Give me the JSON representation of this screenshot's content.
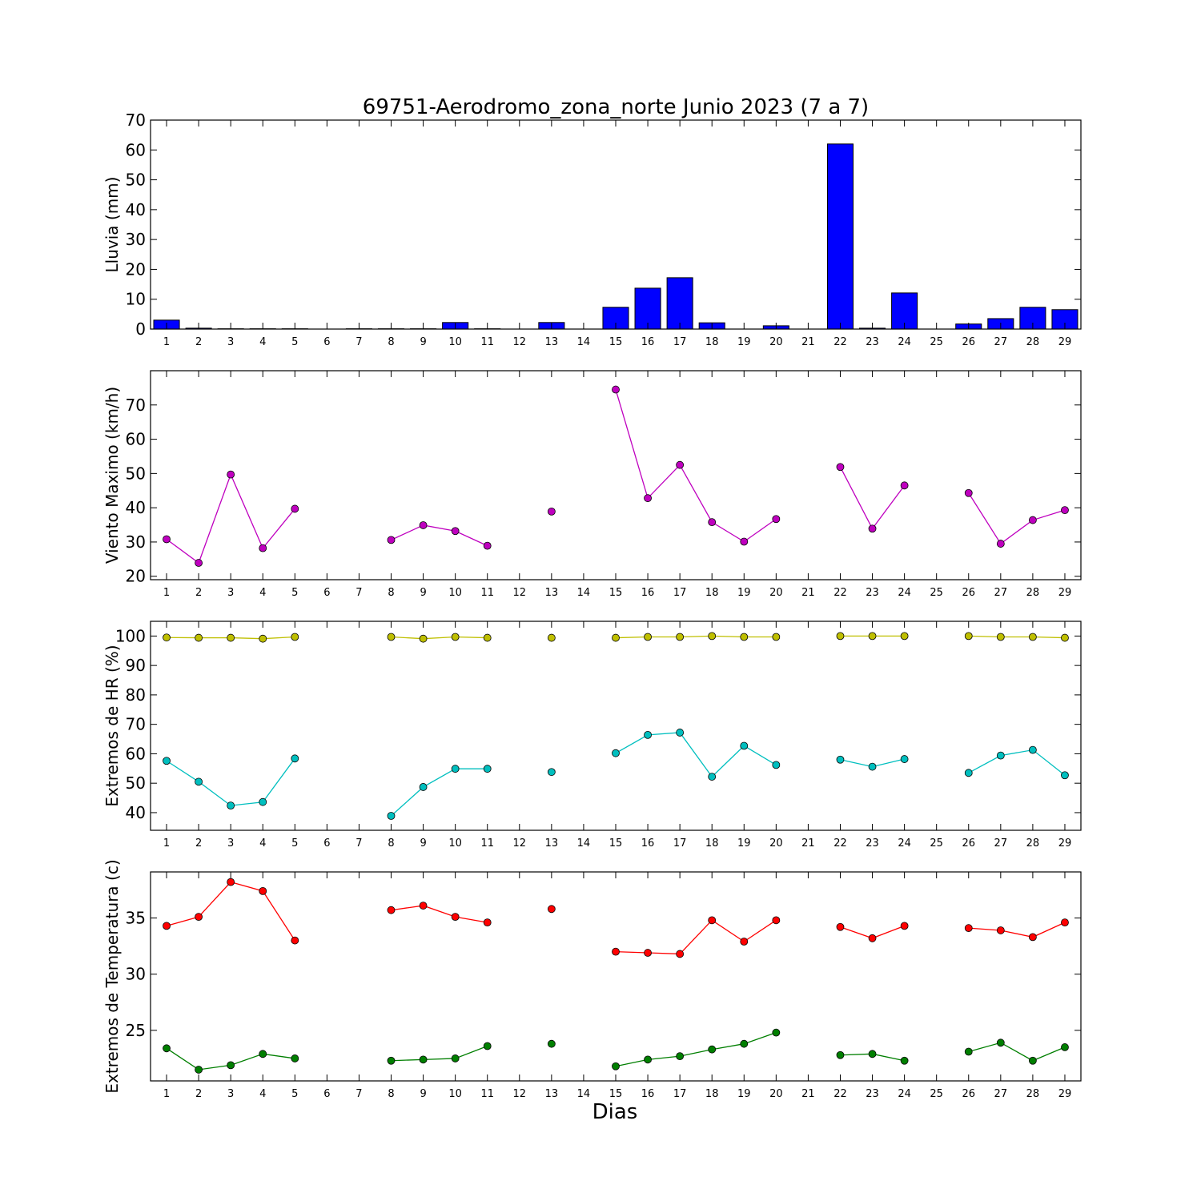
{
  "figure": {
    "title": "69751-Aerodromo_zona_norte Junio 2023  (7 a 7)",
    "xlabel": "Dias"
  },
  "chart_data": [
    {
      "type": "bar",
      "ylabel": "Lluvia (mm)",
      "ylim": [
        0,
        70
      ],
      "yticks": [
        0,
        10,
        20,
        30,
        40,
        50,
        60,
        70
      ],
      "x": [
        1,
        2,
        3,
        4,
        5,
        6,
        7,
        8,
        9,
        10,
        11,
        12,
        13,
        14,
        15,
        16,
        17,
        18,
        19,
        20,
        21,
        22,
        23,
        24,
        25,
        26,
        27,
        28,
        29
      ],
      "values": [
        3.0,
        0.3,
        0.1,
        0.1,
        0.1,
        0,
        0.1,
        0.1,
        0.1,
        2.2,
        0.1,
        0,
        2.2,
        0,
        7.3,
        13.7,
        17.2,
        2.1,
        0,
        1.1,
        0,
        62.0,
        0.3,
        12.1,
        0,
        1.7,
        3.5,
        7.3,
        6.5
      ],
      "color": "#0000ff"
    },
    {
      "type": "line",
      "ylabel": "Viento Maximo (km/h)",
      "ylim": [
        19,
        80
      ],
      "yticks": [
        20,
        30,
        40,
        50,
        60,
        70
      ],
      "x": [
        1,
        2,
        3,
        4,
        5,
        6,
        7,
        8,
        9,
        10,
        11,
        12,
        13,
        14,
        15,
        16,
        17,
        18,
        19,
        20,
        21,
        22,
        23,
        24,
        25,
        26,
        27,
        28,
        29
      ],
      "series": [
        {
          "color": "#bf00bf",
          "values": [
            30.8,
            23.9,
            49.7,
            28.2,
            39.7,
            null,
            null,
            30.6,
            34.9,
            33.2,
            28.9,
            null,
            38.9,
            null,
            74.5,
            42.8,
            52.5,
            35.8,
            30.1,
            36.7,
            null,
            51.9,
            33.9,
            46.5,
            null,
            44.3,
            29.5,
            36.4,
            39.3
          ]
        }
      ]
    },
    {
      "type": "line",
      "ylabel": "Extremos de HR (%)",
      "ylim": [
        34,
        105
      ],
      "yticks": [
        40,
        50,
        60,
        70,
        80,
        90,
        100
      ],
      "x": [
        1,
        2,
        3,
        4,
        5,
        6,
        7,
        8,
        9,
        10,
        11,
        12,
        13,
        14,
        15,
        16,
        17,
        18,
        19,
        20,
        21,
        22,
        23,
        24,
        25,
        26,
        27,
        28,
        29
      ],
      "series": [
        {
          "color": "#bfbf00",
          "values": [
            99.5,
            99.4,
            99.4,
            99.1,
            99.7,
            null,
            null,
            99.7,
            99.1,
            99.7,
            99.4,
            null,
            99.4,
            null,
            99.4,
            99.7,
            99.7,
            100,
            99.7,
            99.7,
            null,
            100,
            100,
            100,
            null,
            100,
            99.7,
            99.7,
            99.4
          ]
        },
        {
          "color": "#00bfbf",
          "values": [
            57.6,
            50.5,
            42.4,
            43.6,
            58.4,
            null,
            null,
            38.9,
            48.7,
            54.9,
            54.9,
            null,
            53.8,
            null,
            60.2,
            66.4,
            67.2,
            52.2,
            62.7,
            56.2,
            null,
            58.0,
            55.6,
            58.2,
            null,
            53.5,
            59.4,
            61.3,
            52.7
          ]
        }
      ]
    },
    {
      "type": "line",
      "ylabel": "Extremos de Temperatura (c)",
      "ylim": [
        20.5,
        39.1
      ],
      "yticks": [
        25,
        30,
        35
      ],
      "x": [
        1,
        2,
        3,
        4,
        5,
        6,
        7,
        8,
        9,
        10,
        11,
        12,
        13,
        14,
        15,
        16,
        17,
        18,
        19,
        20,
        21,
        22,
        23,
        24,
        25,
        26,
        27,
        28,
        29
      ],
      "series": [
        {
          "color": "#ff0000",
          "values": [
            34.3,
            35.1,
            38.2,
            37.4,
            33.0,
            null,
            null,
            35.7,
            36.1,
            35.1,
            34.6,
            null,
            35.8,
            null,
            32.0,
            31.9,
            31.8,
            34.8,
            32.9,
            34.8,
            null,
            34.2,
            33.2,
            34.3,
            null,
            34.1,
            33.9,
            33.3,
            34.6
          ]
        },
        {
          "color": "#007f00",
          "values": [
            23.4,
            21.5,
            21.9,
            22.9,
            22.5,
            null,
            null,
            22.3,
            22.4,
            22.5,
            23.6,
            null,
            23.8,
            null,
            21.8,
            22.4,
            22.7,
            23.3,
            23.8,
            24.8,
            null,
            22.8,
            22.9,
            22.3,
            null,
            23.1,
            23.9,
            22.3,
            23.5
          ]
        }
      ]
    }
  ]
}
